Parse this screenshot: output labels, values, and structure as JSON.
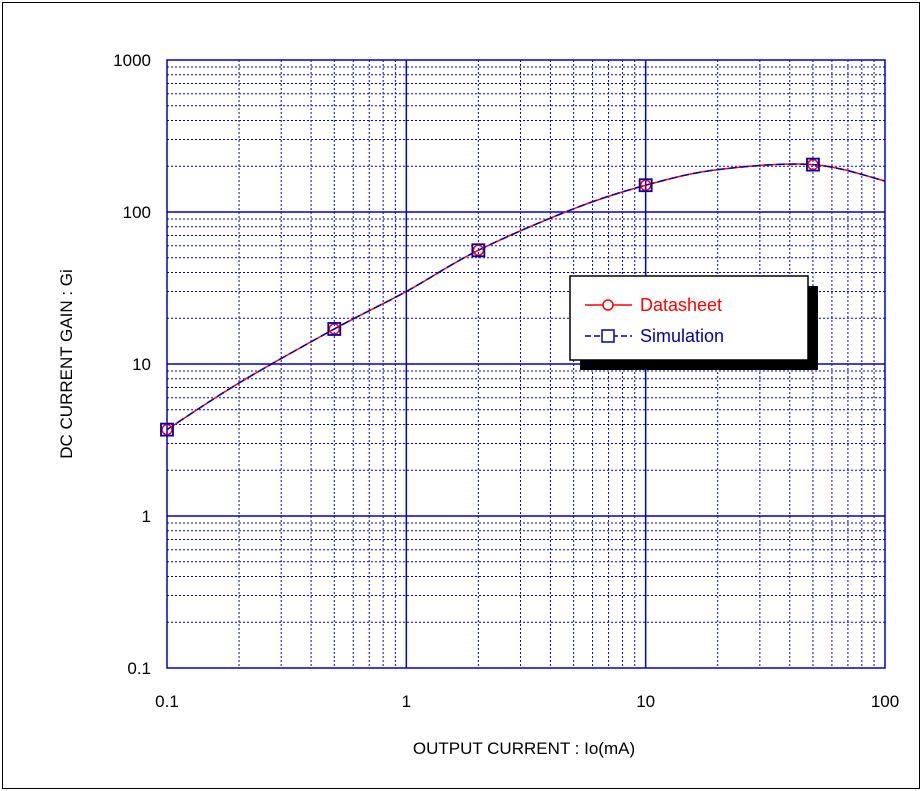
{
  "chart_data": {
    "type": "line",
    "title": "",
    "xlabel": "OUTPUT CURRENT : Io(mA)",
    "ylabel": "DC CURRENT GAIN : Gi",
    "x_scale": "log",
    "y_scale": "log",
    "xlim": [
      0.1,
      100
    ],
    "ylim": [
      0.1,
      1000
    ],
    "x_ticks": [
      "0.1",
      "1",
      "10",
      "100"
    ],
    "y_ticks": [
      "0.1",
      "1",
      "10",
      "100",
      "1000"
    ],
    "grid": true,
    "legend_position": "center-right",
    "series": [
      {
        "name": "Datasheet",
        "color": "#ff0000",
        "marker": "circle",
        "x": [
          0.1,
          0.2,
          0.5,
          1,
          2,
          5,
          10,
          20,
          50,
          100
        ],
        "y": [
          3.7,
          7.5,
          17,
          30,
          56,
          105,
          150,
          190,
          205,
          160
        ]
      },
      {
        "name": "Simulation",
        "color": "#0000aa",
        "marker": "square",
        "x": [
          0.1,
          0.2,
          0.5,
          1,
          2,
          5,
          10,
          20,
          50,
          100
        ],
        "y": [
          3.7,
          7.5,
          17,
          30,
          56,
          105,
          150,
          190,
          205,
          160
        ]
      }
    ],
    "markers_at": {
      "x": [
        0.1,
        0.5,
        2,
        10,
        50
      ],
      "y": [
        3.7,
        17,
        56,
        150,
        205
      ]
    }
  }
}
